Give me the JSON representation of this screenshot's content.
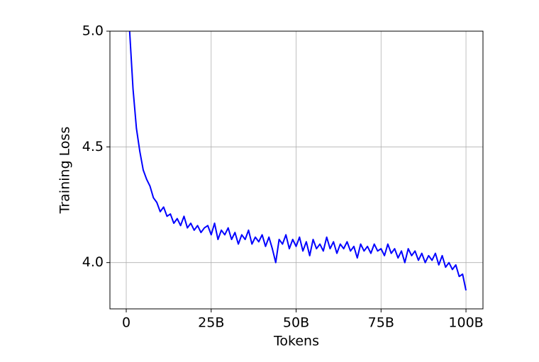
{
  "chart_data": {
    "type": "line",
    "xlabel": "Tokens",
    "ylabel": "Training Loss",
    "x": [
      1,
      2,
      3,
      4,
      5,
      6,
      7,
      8,
      9,
      10,
      11,
      12,
      13,
      14,
      15,
      16,
      17,
      18,
      19,
      20,
      21,
      22,
      23,
      24,
      25,
      26,
      27,
      28,
      29,
      30,
      31,
      32,
      33,
      34,
      35,
      36,
      37,
      38,
      39,
      40,
      41,
      42,
      43,
      44,
      45,
      46,
      47,
      48,
      49,
      50,
      51,
      52,
      53,
      54,
      55,
      56,
      57,
      58,
      59,
      60,
      61,
      62,
      63,
      64,
      65,
      66,
      67,
      68,
      69,
      70,
      71,
      72,
      73,
      74,
      75,
      76,
      77,
      78,
      79,
      80,
      81,
      82,
      83,
      84,
      85,
      86,
      87,
      88,
      89,
      90,
      91,
      92,
      93,
      94,
      95,
      96,
      97,
      98,
      99,
      100
    ],
    "series": [
      {
        "color": "#0000ff",
        "values": [
          5.0,
          4.75,
          4.58,
          4.48,
          4.4,
          4.36,
          4.33,
          4.28,
          4.26,
          4.22,
          4.24,
          4.2,
          4.21,
          4.17,
          4.19,
          4.16,
          4.2,
          4.15,
          4.17,
          4.14,
          4.16,
          4.13,
          4.15,
          4.16,
          4.12,
          4.17,
          4.1,
          4.14,
          4.12,
          4.15,
          4.1,
          4.13,
          4.08,
          4.12,
          4.1,
          4.14,
          4.08,
          4.11,
          4.09,
          4.12,
          4.07,
          4.11,
          4.06,
          4.0,
          4.1,
          4.08,
          4.12,
          4.06,
          4.1,
          4.07,
          4.11,
          4.05,
          4.09,
          4.03,
          4.1,
          4.06,
          4.08,
          4.05,
          4.11,
          4.06,
          4.09,
          4.04,
          4.08,
          4.06,
          4.09,
          4.05,
          4.07,
          4.02,
          4.08,
          4.05,
          4.07,
          4.04,
          4.08,
          4.05,
          4.06,
          4.03,
          4.08,
          4.04,
          4.06,
          4.02,
          4.05,
          4.0,
          4.06,
          4.03,
          4.05,
          4.01,
          4.04,
          4.0,
          4.03,
          4.01,
          4.04,
          3.99,
          4.03,
          3.98,
          4.0,
          3.97,
          3.99,
          3.94,
          3.95,
          3.88
        ]
      }
    ],
    "xlim": [
      -4.8,
      105
    ],
    "ylim": [
      3.8,
      5.0
    ],
    "xticks": [
      0,
      {
        "value": 25,
        "label": "25B"
      },
      {
        "value": 50,
        "label": "50B"
      },
      {
        "value": 75,
        "label": "75B"
      },
      {
        "value": 100,
        "label": "100B"
      }
    ],
    "yticks": [
      {
        "value": 4.0,
        "label": "4.0"
      },
      {
        "value": 4.5,
        "label": "4.5"
      },
      {
        "value": 5.0,
        "label": "5.0"
      }
    ],
    "grid": true
  }
}
